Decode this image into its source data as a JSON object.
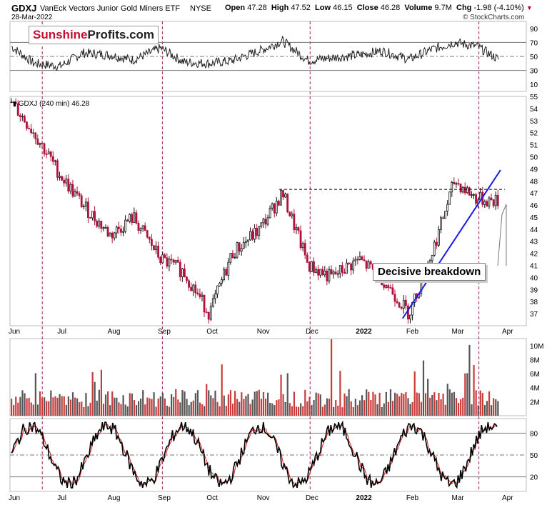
{
  "header": {
    "symbol": "GDXJ",
    "name": "VanEck Vectors Junior Gold Miners ETF",
    "exchange": "NYSE",
    "date": "28-Mar-2022",
    "open_label": "Open",
    "open": "47.28",
    "high_label": "High",
    "high": "47.52",
    "low_label": "Low",
    "low": "46.15",
    "close_label": "Close",
    "close": "46.28",
    "volume_label": "Volume",
    "volume": "9.7M",
    "chg_label": "Chg",
    "chg": "-1.98 (-4.10%)",
    "down_arrow": "▼",
    "copyright": "© StockCharts.com"
  },
  "logo": {
    "part1": "Sunshine",
    "part2": "Profits.com"
  },
  "price_legend": "GDXJ (240 min) 46.28",
  "callout_text": "Decisive breakdown",
  "colors": {
    "up": "#111111",
    "down": "#b0113a",
    "trendline": "#1a1aee",
    "vline": "#9b1d5a",
    "stoch_k": "#000000",
    "stoch_d": "#d42020",
    "volume_down": "#c93a3a",
    "volume_up": "#555555"
  },
  "chart_data": [
    {
      "type": "line",
      "panel": "rsi",
      "ylim": [
        0,
        100
      ],
      "yticks": [
        10,
        30,
        50,
        70,
        90
      ],
      "levels": [
        30,
        50,
        70
      ],
      "x": [
        "Jun 1",
        "Jun 15",
        "Jul 1",
        "Jul 15",
        "Aug 1",
        "Aug 15",
        "Sep 1",
        "Sep 15",
        "Oct 1",
        "Oct 15",
        "Nov 1",
        "Nov 15",
        "Dec 1",
        "Dec 15",
        "Jan 1",
        "Jan 15",
        "Feb 1",
        "Feb 15",
        "Mar 1",
        "Mar 15",
        "Mar 28"
      ],
      "series": [
        {
          "values": [
            64,
            40,
            36,
            55,
            52,
            45,
            62,
            42,
            40,
            44,
            58,
            72,
            44,
            48,
            52,
            58,
            46,
            60,
            70,
            64,
            46
          ]
        }
      ]
    },
    {
      "type": "candlestick",
      "panel": "price",
      "ylim": [
        36,
        55
      ],
      "yticks": [
        37,
        38,
        39,
        40,
        41,
        42,
        43,
        44,
        45,
        46,
        47,
        48,
        49,
        50,
        51,
        52,
        53,
        54,
        55
      ],
      "xticks": [
        "Jun",
        "Jul",
        "Aug",
        "Sep",
        "Oct",
        "Nov",
        "Dec",
        "2022",
        "Feb",
        "Mar",
        "Apr"
      ],
      "x": [
        "Jun 1",
        "Jun 15",
        "Jul 1",
        "Jul 15",
        "Aug 1",
        "Aug 15",
        "Sep 1",
        "Sep 15",
        "Oct 1",
        "Oct 15",
        "Nov 1",
        "Nov 15",
        "Dec 1",
        "Dec 15",
        "Jan 1",
        "Jan 15",
        "Feb 1",
        "Feb 15",
        "Mar 1",
        "Mar 15",
        "Mar 28"
      ],
      "series": [
        {
          "name": "GDXJ",
          "values": [
            54.5,
            52,
            48.5,
            46,
            43.5,
            45,
            41.5,
            40.5,
            37,
            42,
            44,
            47,
            41,
            40,
            41.5,
            40,
            37,
            42,
            48,
            46.5,
            46.3
          ]
        }
      ],
      "resistance": 47.3,
      "trendline": {
        "from": {
          "x": "Jan 28",
          "y": 36.6
        },
        "to": {
          "x": "Mar 28",
          "y": 48.9
        }
      }
    },
    {
      "type": "bar",
      "panel": "volume",
      "ylim": [
        0,
        11
      ],
      "yticks": [
        "2M",
        "4M",
        "6M",
        "8M",
        "10M"
      ],
      "ytick_values": [
        2,
        4,
        6,
        8,
        10
      ]
    },
    {
      "type": "line",
      "panel": "stochastic",
      "ylim": [
        0,
        100
      ],
      "yticks": [
        20,
        50,
        80
      ],
      "levels": [
        20,
        50,
        80
      ],
      "xticks": [
        "Jun",
        "Jul",
        "Aug",
        "Sep",
        "Oct",
        "Nov",
        "Dec",
        "2022",
        "Feb",
        "Mar",
        "Apr"
      ]
    }
  ]
}
